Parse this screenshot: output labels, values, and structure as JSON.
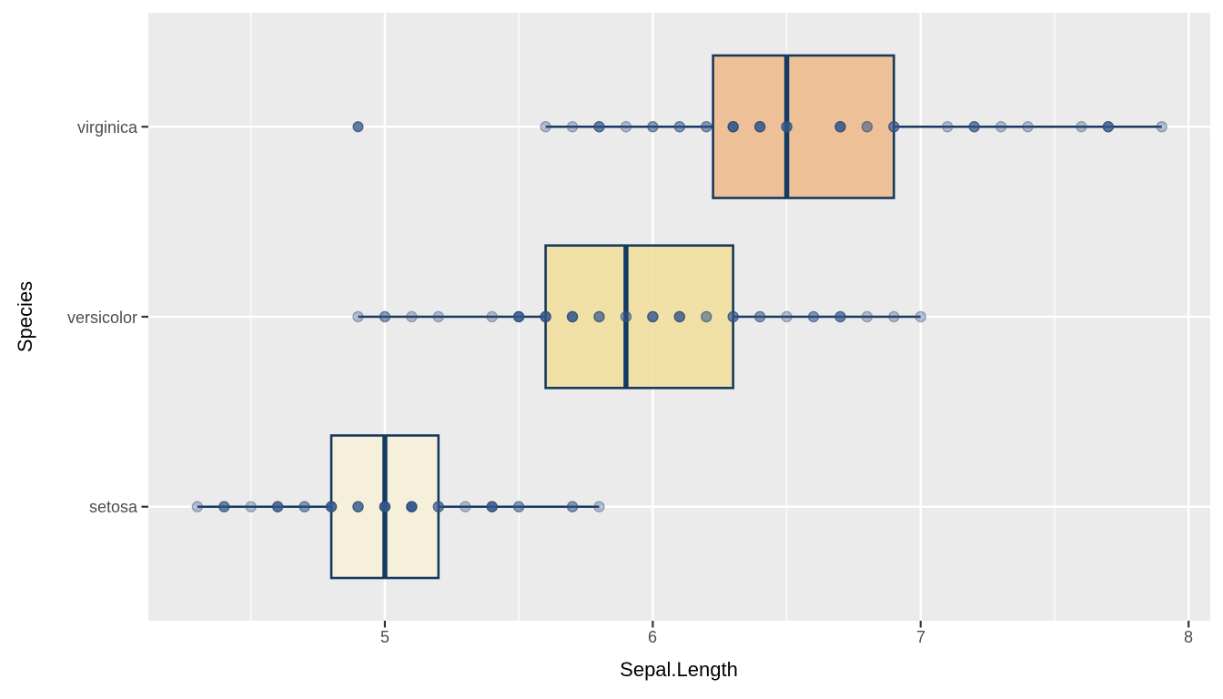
{
  "figure": {
    "x_axis": {
      "label": "Sepal.Length",
      "tick_labels": [
        "5",
        "6",
        "7",
        "8"
      ],
      "tick_values": [
        5,
        6,
        7,
        8
      ],
      "minor_tick_values": [
        4.5,
        5.5,
        6.5,
        7.5
      ],
      "range": [
        4.117,
        8.081
      ]
    },
    "y_axis": {
      "label": "Species",
      "categories": [
        "setosa",
        "versicolor",
        "virginica"
      ]
    }
  },
  "chart_data": {
    "type": "boxplot",
    "orientation": "horizontal",
    "title": "",
    "xlabel": "Sepal.Length",
    "ylabel": "Species",
    "xlim": [
      4.117,
      8.081
    ],
    "grid": "on",
    "legend": "none",
    "style": {
      "panel_background": "#EBEBEB",
      "grid_color": "#FFFFFF",
      "box_stroke": "#17395F",
      "median_stroke": "#123A64",
      "point_color": "#34568B",
      "point_rim_color": "#2A4A77",
      "tick_mark_color": "#333333",
      "tick_label_color": "#4D4D4D",
      "axis_title_color": "#000000"
    },
    "groups": [
      {
        "name": "setosa",
        "row": 1,
        "fill": "#F7F0D8",
        "box": {
          "whisker_low": 4.3,
          "q1": 4.8,
          "median": 5.0,
          "q3": 5.2,
          "whisker_high": 5.8,
          "outliers": []
        },
        "points": [
          [
            4.3,
            1
          ],
          [
            4.4,
            3
          ],
          [
            4.5,
            1
          ],
          [
            4.6,
            4
          ],
          [
            4.7,
            2
          ],
          [
            4.8,
            5
          ],
          [
            4.9,
            4
          ],
          [
            5.0,
            8
          ],
          [
            5.1,
            8
          ],
          [
            5.2,
            3
          ],
          [
            5.3,
            1
          ],
          [
            5.4,
            5
          ],
          [
            5.5,
            2
          ],
          [
            5.7,
            2
          ],
          [
            5.8,
            1
          ]
        ]
      },
      {
        "name": "versicolor",
        "row": 2,
        "fill": "#F1DE9C",
        "box": {
          "whisker_low": 4.9,
          "q1": 5.6,
          "median": 5.9,
          "q3": 6.3,
          "whisker_high": 7.0,
          "outliers": []
        },
        "points": [
          [
            4.9,
            1
          ],
          [
            5.0,
            2
          ],
          [
            5.1,
            1
          ],
          [
            5.2,
            1
          ],
          [
            5.4,
            1
          ],
          [
            5.5,
            5
          ],
          [
            5.6,
            5
          ],
          [
            5.7,
            5
          ],
          [
            5.8,
            3
          ],
          [
            5.9,
            2
          ],
          [
            6.0,
            4
          ],
          [
            6.1,
            4
          ],
          [
            6.2,
            2
          ],
          [
            6.3,
            3
          ],
          [
            6.4,
            2
          ],
          [
            6.5,
            1
          ],
          [
            6.6,
            2
          ],
          [
            6.7,
            3
          ],
          [
            6.8,
            1
          ],
          [
            6.9,
            1
          ],
          [
            7.0,
            1
          ]
        ]
      },
      {
        "name": "virginica",
        "row": 3,
        "fill": "#EDBA8B",
        "box": {
          "whisker_low": 5.6,
          "q1": 6.225,
          "median": 6.5,
          "q3": 6.9,
          "whisker_high": 7.9,
          "outliers": [
            4.9
          ]
        },
        "points": [
          [
            4.9,
            1
          ],
          [
            5.6,
            1
          ],
          [
            5.7,
            1
          ],
          [
            5.8,
            3
          ],
          [
            5.9,
            1
          ],
          [
            6.0,
            2
          ],
          [
            6.1,
            2
          ],
          [
            6.2,
            2
          ],
          [
            6.3,
            6
          ],
          [
            6.4,
            5
          ],
          [
            6.5,
            4
          ],
          [
            6.7,
            5
          ],
          [
            6.8,
            2
          ],
          [
            6.9,
            3
          ],
          [
            7.1,
            1
          ],
          [
            7.2,
            3
          ],
          [
            7.3,
            1
          ],
          [
            7.4,
            1
          ],
          [
            7.6,
            1
          ],
          [
            7.7,
            4
          ],
          [
            7.9,
            1
          ]
        ]
      }
    ]
  }
}
